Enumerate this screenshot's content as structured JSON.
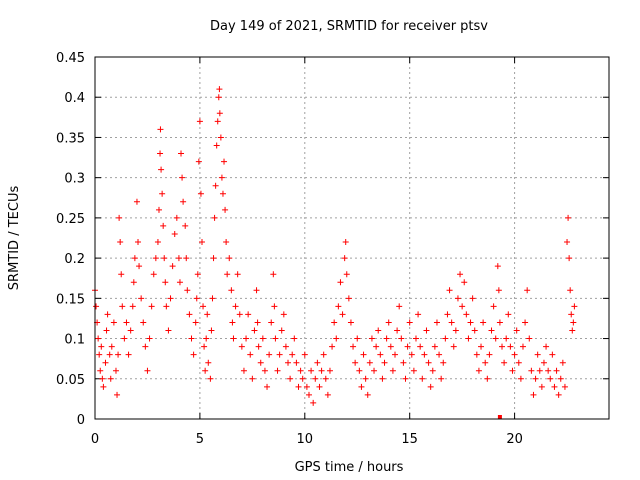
{
  "chart_data": {
    "type": "scatter",
    "title": "Day 149 of 2021, SRMTID for receiver ptsv",
    "xlabel": "GPS time / hours",
    "ylabel": "SRMTID / TECUs",
    "xlim": [
      0,
      24.5
    ],
    "ylim": [
      0,
      0.45
    ],
    "xticks": [
      0,
      5,
      10,
      15,
      20
    ],
    "xtick_labels": [
      "0",
      "5",
      "10",
      "15",
      "20"
    ],
    "yticks": [
      0,
      0.05,
      0.1,
      0.15,
      0.2,
      0.25,
      0.3,
      0.35,
      0.4,
      0.45
    ],
    "ytick_labels": [
      "0",
      "0.05",
      "0.1",
      "0.15",
      "0.2",
      "0.25",
      "0.3",
      "0.35",
      "0.4",
      "0.45"
    ],
    "grid": true,
    "marker": "plus",
    "color": "#ff0000",
    "series": [
      {
        "name": "SRMTID",
        "points": [
          [
            0.0,
            0.16
          ],
          [
            0.05,
            0.14
          ],
          [
            0.1,
            0.12
          ],
          [
            0.15,
            0.1
          ],
          [
            0.2,
            0.08
          ],
          [
            0.25,
            0.06
          ],
          [
            0.3,
            0.09
          ],
          [
            0.35,
            0.05
          ],
          [
            0.4,
            0.04
          ],
          [
            0.5,
            0.07
          ],
          [
            0.55,
            0.11
          ],
          [
            0.6,
            0.13
          ],
          [
            0.7,
            0.08
          ],
          [
            0.75,
            0.05
          ],
          [
            0.8,
            0.09
          ],
          [
            0.9,
            0.12
          ],
          [
            1.0,
            0.06
          ],
          [
            1.05,
            0.03
          ],
          [
            1.1,
            0.08
          ],
          [
            1.15,
            0.25
          ],
          [
            1.2,
            0.22
          ],
          [
            1.25,
            0.18
          ],
          [
            1.3,
            0.14
          ],
          [
            1.4,
            0.1
          ],
          [
            1.5,
            0.12
          ],
          [
            1.6,
            0.08
          ],
          [
            1.7,
            0.11
          ],
          [
            1.8,
            0.14
          ],
          [
            1.85,
            0.17
          ],
          [
            1.9,
            0.2
          ],
          [
            2.0,
            0.27
          ],
          [
            2.05,
            0.22
          ],
          [
            2.1,
            0.19
          ],
          [
            2.2,
            0.15
          ],
          [
            2.3,
            0.12
          ],
          [
            2.4,
            0.09
          ],
          [
            2.5,
            0.06
          ],
          [
            2.6,
            0.1
          ],
          [
            2.7,
            0.14
          ],
          [
            2.8,
            0.18
          ],
          [
            2.9,
            0.2
          ],
          [
            3.0,
            0.22
          ],
          [
            3.05,
            0.26
          ],
          [
            3.1,
            0.33
          ],
          [
            3.12,
            0.36
          ],
          [
            3.15,
            0.31
          ],
          [
            3.2,
            0.28
          ],
          [
            3.25,
            0.24
          ],
          [
            3.3,
            0.2
          ],
          [
            3.35,
            0.17
          ],
          [
            3.4,
            0.14
          ],
          [
            3.5,
            0.11
          ],
          [
            3.6,
            0.15
          ],
          [
            3.7,
            0.19
          ],
          [
            3.8,
            0.23
          ],
          [
            3.9,
            0.25
          ],
          [
            4.0,
            0.2
          ],
          [
            4.05,
            0.17
          ],
          [
            4.1,
            0.33
          ],
          [
            4.15,
            0.3
          ],
          [
            4.2,
            0.27
          ],
          [
            4.3,
            0.24
          ],
          [
            4.35,
            0.2
          ],
          [
            4.4,
            0.16
          ],
          [
            4.5,
            0.13
          ],
          [
            4.6,
            0.1
          ],
          [
            4.7,
            0.08
          ],
          [
            4.8,
            0.12
          ],
          [
            4.85,
            0.15
          ],
          [
            4.9,
            0.18
          ],
          [
            4.95,
            0.32
          ],
          [
            5.0,
            0.37
          ],
          [
            5.05,
            0.28
          ],
          [
            5.1,
            0.22
          ],
          [
            5.15,
            0.14
          ],
          [
            5.2,
            0.09
          ],
          [
            5.25,
            0.06
          ],
          [
            5.3,
            0.1
          ],
          [
            5.35,
            0.13
          ],
          [
            5.4,
            0.07
          ],
          [
            5.5,
            0.05
          ],
          [
            5.55,
            0.11
          ],
          [
            5.6,
            0.15
          ],
          [
            5.65,
            0.2
          ],
          [
            5.7,
            0.25
          ],
          [
            5.75,
            0.29
          ],
          [
            5.8,
            0.34
          ],
          [
            5.85,
            0.37
          ],
          [
            5.9,
            0.4
          ],
          [
            5.93,
            0.41
          ],
          [
            5.95,
            0.38
          ],
          [
            6.0,
            0.35
          ],
          [
            6.05,
            0.3
          ],
          [
            6.1,
            0.28
          ],
          [
            6.15,
            0.32
          ],
          [
            6.2,
            0.26
          ],
          [
            6.25,
            0.22
          ],
          [
            6.3,
            0.18
          ],
          [
            6.4,
            0.2
          ],
          [
            6.5,
            0.16
          ],
          [
            6.55,
            0.12
          ],
          [
            6.6,
            0.1
          ],
          [
            6.7,
            0.14
          ],
          [
            6.8,
            0.18
          ],
          [
            6.9,
            0.13
          ],
          [
            7.0,
            0.09
          ],
          [
            7.1,
            0.06
          ],
          [
            7.2,
            0.1
          ],
          [
            7.3,
            0.13
          ],
          [
            7.4,
            0.08
          ],
          [
            7.5,
            0.05
          ],
          [
            7.6,
            0.11
          ],
          [
            7.7,
            0.16
          ],
          [
            7.75,
            0.12
          ],
          [
            7.8,
            0.09
          ],
          [
            7.9,
            0.07
          ],
          [
            8.0,
            0.1
          ],
          [
            8.1,
            0.06
          ],
          [
            8.2,
            0.04
          ],
          [
            8.3,
            0.08
          ],
          [
            8.4,
            0.12
          ],
          [
            8.5,
            0.18
          ],
          [
            8.55,
            0.14
          ],
          [
            8.6,
            0.1
          ],
          [
            8.7,
            0.06
          ],
          [
            8.8,
            0.08
          ],
          [
            8.9,
            0.11
          ],
          [
            9.0,
            0.13
          ],
          [
            9.1,
            0.09
          ],
          [
            9.2,
            0.07
          ],
          [
            9.3,
            0.05
          ],
          [
            9.4,
            0.08
          ],
          [
            9.5,
            0.1
          ],
          [
            9.6,
            0.07
          ],
          [
            9.7,
            0.04
          ],
          [
            9.8,
            0.06
          ],
          [
            9.9,
            0.05
          ],
          [
            10.0,
            0.08
          ],
          [
            10.1,
            0.04
          ],
          [
            10.2,
            0.03
          ],
          [
            10.3,
            0.06
          ],
          [
            10.4,
            0.02
          ],
          [
            10.5,
            0.05
          ],
          [
            10.6,
            0.07
          ],
          [
            10.7,
            0.04
          ],
          [
            10.8,
            0.06
          ],
          [
            10.9,
            0.08
          ],
          [
            11.0,
            0.05
          ],
          [
            11.1,
            0.03
          ],
          [
            11.2,
            0.06
          ],
          [
            11.3,
            0.09
          ],
          [
            11.4,
            0.12
          ],
          [
            11.5,
            0.1
          ],
          [
            11.6,
            0.14
          ],
          [
            11.7,
            0.17
          ],
          [
            11.8,
            0.13
          ],
          [
            11.9,
            0.2
          ],
          [
            11.95,
            0.22
          ],
          [
            12.0,
            0.18
          ],
          [
            12.1,
            0.15
          ],
          [
            12.2,
            0.12
          ],
          [
            12.3,
            0.09
          ],
          [
            12.4,
            0.07
          ],
          [
            12.5,
            0.1
          ],
          [
            12.6,
            0.06
          ],
          [
            12.7,
            0.04
          ],
          [
            12.8,
            0.08
          ],
          [
            12.9,
            0.05
          ],
          [
            13.0,
            0.03
          ],
          [
            13.1,
            0.07
          ],
          [
            13.2,
            0.1
          ],
          [
            13.3,
            0.06
          ],
          [
            13.4,
            0.09
          ],
          [
            13.5,
            0.11
          ],
          [
            13.6,
            0.08
          ],
          [
            13.7,
            0.05
          ],
          [
            13.8,
            0.07
          ],
          [
            13.9,
            0.1
          ],
          [
            14.0,
            0.12
          ],
          [
            14.1,
            0.09
          ],
          [
            14.2,
            0.06
          ],
          [
            14.3,
            0.08
          ],
          [
            14.4,
            0.11
          ],
          [
            14.5,
            0.14
          ],
          [
            14.6,
            0.1
          ],
          [
            14.7,
            0.07
          ],
          [
            14.8,
            0.05
          ],
          [
            14.9,
            0.09
          ],
          [
            15.0,
            0.12
          ],
          [
            15.1,
            0.08
          ],
          [
            15.2,
            0.06
          ],
          [
            15.3,
            0.1
          ],
          [
            15.4,
            0.13
          ],
          [
            15.5,
            0.09
          ],
          [
            15.6,
            0.05
          ],
          [
            15.7,
            0.08
          ],
          [
            15.8,
            0.11
          ],
          [
            15.9,
            0.07
          ],
          [
            16.0,
            0.04
          ],
          [
            16.1,
            0.06
          ],
          [
            16.2,
            0.09
          ],
          [
            16.3,
            0.12
          ],
          [
            16.4,
            0.08
          ],
          [
            16.5,
            0.05
          ],
          [
            16.6,
            0.07
          ],
          [
            16.7,
            0.1
          ],
          [
            16.8,
            0.13
          ],
          [
            16.9,
            0.16
          ],
          [
            17.0,
            0.12
          ],
          [
            17.1,
            0.09
          ],
          [
            17.2,
            0.11
          ],
          [
            17.3,
            0.15
          ],
          [
            17.4,
            0.18
          ],
          [
            17.5,
            0.14
          ],
          [
            17.6,
            0.17
          ],
          [
            17.7,
            0.13
          ],
          [
            17.8,
            0.1
          ],
          [
            17.9,
            0.12
          ],
          [
            18.0,
            0.15
          ],
          [
            18.1,
            0.11
          ],
          [
            18.2,
            0.08
          ],
          [
            18.3,
            0.06
          ],
          [
            18.4,
            0.09
          ],
          [
            18.5,
            0.12
          ],
          [
            18.6,
            0.07
          ],
          [
            18.7,
            0.05
          ],
          [
            18.8,
            0.08
          ],
          [
            18.9,
            0.11
          ],
          [
            19.0,
            0.14
          ],
          [
            19.1,
            0.1
          ],
          [
            19.2,
            0.19
          ],
          [
            19.25,
            0.16
          ],
          [
            19.3,
            0.12
          ],
          [
            19.4,
            0.09
          ],
          [
            19.5,
            0.07
          ],
          [
            19.6,
            0.1
          ],
          [
            19.7,
            0.13
          ],
          [
            19.8,
            0.09
          ],
          [
            19.9,
            0.06
          ],
          [
            20.0,
            0.08
          ],
          [
            20.1,
            0.11
          ],
          [
            20.2,
            0.07
          ],
          [
            20.3,
            0.05
          ],
          [
            20.4,
            0.09
          ],
          [
            20.5,
            0.12
          ],
          [
            20.6,
            0.16
          ],
          [
            20.7,
            0.1
          ],
          [
            20.8,
            0.06
          ],
          [
            20.9,
            0.03
          ],
          [
            21.0,
            0.05
          ],
          [
            21.1,
            0.08
          ],
          [
            21.2,
            0.06
          ],
          [
            21.3,
            0.04
          ],
          [
            21.4,
            0.07
          ],
          [
            21.5,
            0.09
          ],
          [
            21.6,
            0.06
          ],
          [
            21.7,
            0.05
          ],
          [
            21.8,
            0.08
          ],
          [
            21.9,
            0.04
          ],
          [
            22.0,
            0.06
          ],
          [
            22.1,
            0.03
          ],
          [
            22.2,
            0.05
          ],
          [
            22.3,
            0.07
          ],
          [
            22.4,
            0.04
          ],
          [
            22.5,
            0.22
          ],
          [
            22.55,
            0.25
          ],
          [
            22.6,
            0.2
          ],
          [
            22.65,
            0.16
          ],
          [
            22.7,
            0.13
          ],
          [
            22.75,
            0.11
          ],
          [
            22.8,
            0.12
          ],
          [
            22.85,
            0.14
          ]
        ]
      }
    ],
    "annotations": [
      {
        "type": "marker",
        "shape": "square",
        "x": 19.3,
        "y": 0.0
      }
    ]
  }
}
